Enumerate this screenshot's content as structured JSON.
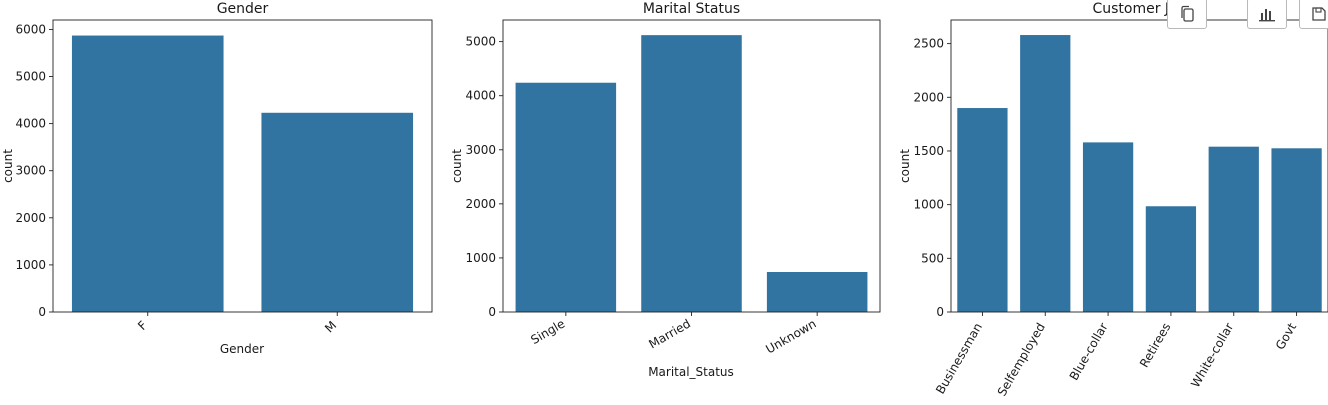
{
  "chart_data": [
    {
      "type": "bar",
      "title": "Gender",
      "xlabel": "Gender",
      "ylabel": "count",
      "categories": [
        "F",
        "M"
      ],
      "values": [
        5870,
        4230
      ],
      "ylim": [
        0,
        6200
      ],
      "yticks": [
        0,
        1000,
        2000,
        3000,
        4000,
        5000,
        6000
      ],
      "tick_rotation": 45,
      "color": "#3274a1",
      "grid": false
    },
    {
      "type": "bar",
      "title": "Marital Status",
      "xlabel": "Marital_Status",
      "ylabel": "count",
      "categories": [
        "Single",
        "Married",
        "Unknown"
      ],
      "values": [
        4240,
        5120,
        740
      ],
      "ylim": [
        0,
        5400
      ],
      "yticks": [
        0,
        1000,
        2000,
        3000,
        4000,
        5000
      ],
      "tick_rotation": 30,
      "color": "#3274a1",
      "grid": false
    },
    {
      "type": "bar",
      "title": "Customer Job",
      "xlabel": "",
      "ylabel": "count",
      "categories": [
        "Businessman",
        "Selfemployed",
        "Blue-collar",
        "Retirees",
        "White-collar",
        "Govt"
      ],
      "values": [
        1900,
        2580,
        1580,
        985,
        1540,
        1525
      ],
      "ylim": [
        0,
        2720
      ],
      "yticks": [
        0,
        500,
        1000,
        1500,
        2000,
        2500
      ],
      "tick_rotation": 60,
      "color": "#3274a1",
      "grid": false
    }
  ],
  "toolbar": {
    "buttons": [
      {
        "name": "copy-button",
        "icon": "copy-icon"
      },
      {
        "name": "chart-button",
        "icon": "bar-chart-icon"
      },
      {
        "name": "save-button",
        "icon": "save-icon"
      }
    ]
  }
}
